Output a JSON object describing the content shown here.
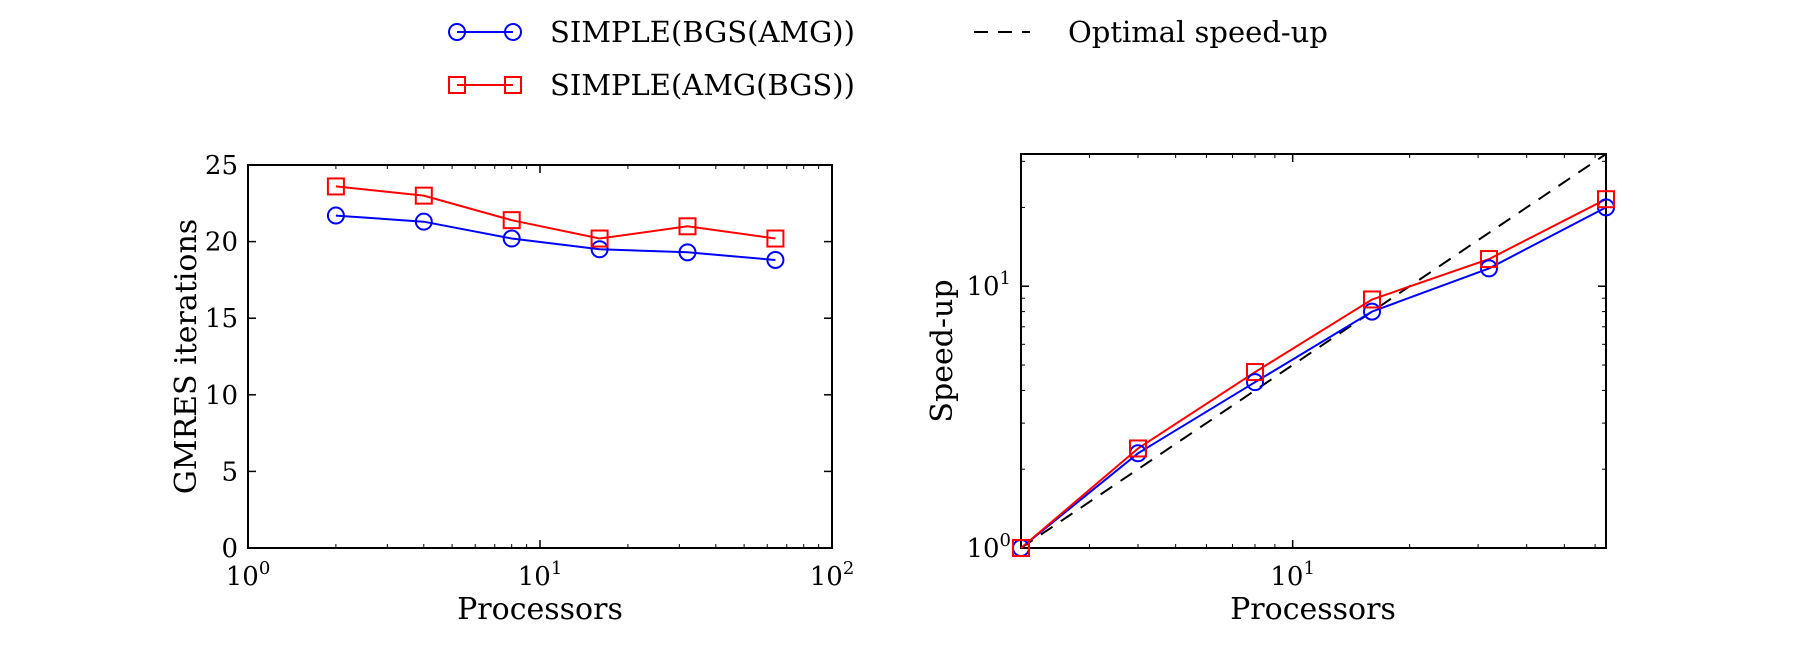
{
  "legend": {
    "entries": [
      {
        "label": "SIMPLE(BGS(AMG))",
        "color": "#0000ff",
        "marker": "circle",
        "linestyle": "solid"
      },
      {
        "label": "SIMPLE(AMG(BGS))",
        "color": "#ff0000",
        "marker": "square",
        "linestyle": "solid"
      },
      {
        "label": "Optimal speed-up",
        "color": "#000000",
        "marker": "none",
        "linestyle": "dashed"
      }
    ],
    "placement": "top-center"
  },
  "chart_data": [
    {
      "type": "line",
      "xscale": "log",
      "yscale": "linear",
      "xlabel": "Processors",
      "ylabel": "GMRES iterations",
      "xlim": [
        1,
        100
      ],
      "ylim": [
        0,
        25
      ],
      "xticks": [
        1,
        10,
        100
      ],
      "xtick_labels": [
        {
          "base": "10",
          "exp": "0"
        },
        {
          "base": "10",
          "exp": "1"
        },
        {
          "base": "10",
          "exp": "2"
        }
      ],
      "yticks": [
        0,
        5,
        10,
        15,
        20,
        25
      ],
      "ytick_labels": [
        "0",
        "5",
        "10",
        "15",
        "20",
        "25"
      ],
      "grid": false,
      "x": [
        2,
        4,
        8,
        16,
        32,
        64
      ],
      "series": [
        {
          "name": "SIMPLE(BGS(AMG))",
          "values": [
            21.7,
            21.3,
            20.2,
            19.5,
            19.3,
            18.8
          ],
          "color": "#0000ff",
          "marker": "circle"
        },
        {
          "name": "SIMPLE(AMG(BGS))",
          "values": [
            23.6,
            23.0,
            21.4,
            20.2,
            21.0,
            20.2
          ],
          "color": "#ff0000",
          "marker": "square"
        }
      ]
    },
    {
      "type": "line",
      "xscale": "log",
      "yscale": "log",
      "xlabel": "Processors",
      "ylabel": "Speed-up",
      "xlim": [
        2,
        64
      ],
      "ylim": [
        1,
        32
      ],
      "xticks": [
        10
      ],
      "xtick_labels": [
        {
          "base": "10",
          "exp": "1"
        }
      ],
      "yticks": [
        1,
        10
      ],
      "ytick_labels": [
        {
          "base": "10",
          "exp": "0"
        },
        {
          "base": "10",
          "exp": "1"
        }
      ],
      "grid": false,
      "x": [
        2,
        4,
        8,
        16,
        32,
        64
      ],
      "series": [
        {
          "name": "SIMPLE(BGS(AMG))",
          "values": [
            1.0,
            2.3,
            4.3,
            8.0,
            11.7,
            20.0
          ],
          "color": "#0000ff",
          "marker": "circle"
        },
        {
          "name": "SIMPLE(AMG(BGS))",
          "values": [
            1.0,
            2.4,
            4.7,
            8.9,
            12.7,
            21.5
          ],
          "color": "#ff0000",
          "marker": "square"
        },
        {
          "name": "Optimal speed-up",
          "values": [
            1,
            2,
            4,
            8,
            16,
            32
          ],
          "color": "#000000",
          "marker": "none",
          "linestyle": "dashed"
        }
      ]
    }
  ]
}
